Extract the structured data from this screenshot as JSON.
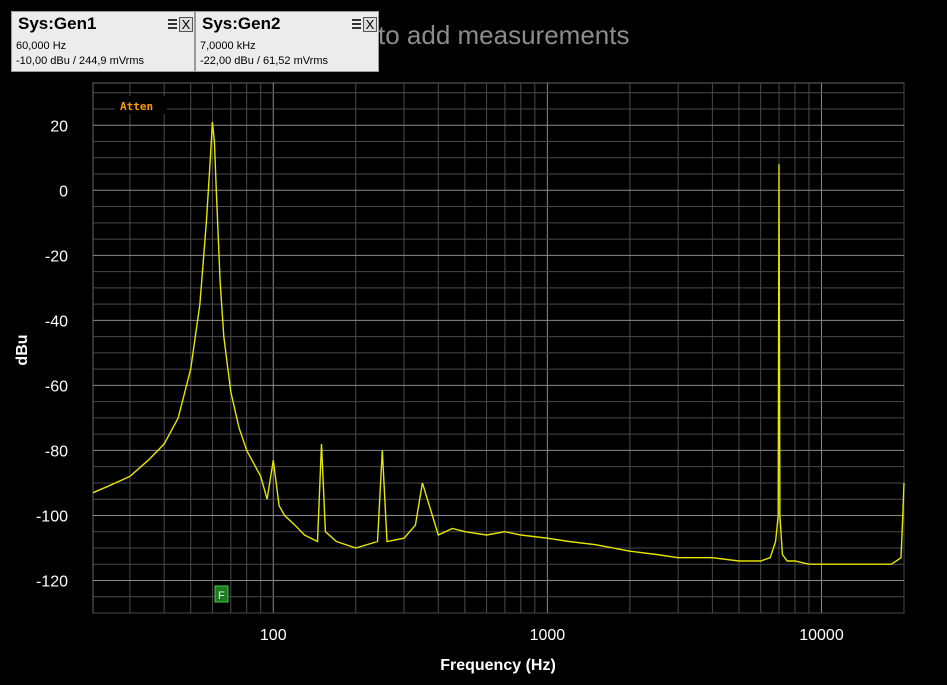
{
  "hint": "to add measurements",
  "panels": [
    {
      "title": "Sys:Gen1",
      "close": "X",
      "line1": "60,000 Hz",
      "line2": "-10,00 dBu  / 244,9 mVrms"
    },
    {
      "title": "Sys:Gen2",
      "close": "X",
      "line1": "7,0000 kHz",
      "line2": "-22,00 dBu  / 61,52 mVrms"
    }
  ],
  "chart_data": {
    "type": "line",
    "xlabel": "Frequency (Hz)",
    "ylabel": "dBu",
    "xscale": "log",
    "xlim": [
      22,
      20000
    ],
    "ylim": [
      -130,
      33
    ],
    "grid": true,
    "x_ticks": [
      "100",
      "1000",
      "10000"
    ],
    "y_ticks": [
      "20",
      "0",
      "-20",
      "-40",
      "-60",
      "-80",
      "-100",
      "-120"
    ],
    "legend_label": "Atten",
    "marker_label": "F",
    "series": [
      {
        "color": "#e6e600",
        "x": [
          22,
          25,
          30,
          35,
          40,
          45,
          50,
          54,
          57,
          59,
          60,
          61,
          62,
          64,
          66,
          70,
          75,
          80,
          90,
          95,
          100,
          105,
          110,
          120,
          130,
          145,
          150,
          155,
          170,
          200,
          240,
          250,
          260,
          300,
          330,
          350,
          400,
          450,
          500,
          600,
          700,
          800,
          1000,
          1200,
          1500,
          2000,
          2500,
          3000,
          4000,
          5000,
          6000,
          6500,
          6800,
          6950,
          7000,
          7050,
          7200,
          7500,
          8000,
          9000,
          10000,
          12000,
          15000,
          18000,
          19500,
          19800,
          20000
        ],
        "y": [
          -93,
          -91,
          -88,
          -83,
          -78,
          -70,
          -55,
          -35,
          -10,
          10,
          21,
          15,
          0,
          -28,
          -45,
          -62,
          -73,
          -80,
          -88,
          -95,
          -83,
          -97,
          -100,
          -103,
          -106,
          -108,
          -78,
          -105,
          -108,
          -110,
          -108,
          -80,
          -108,
          -107,
          -103,
          -90,
          -106,
          -104,
          -105,
          -106,
          -105,
          -106,
          -107,
          -108,
          -109,
          -111,
          -112,
          -113,
          -113,
          -114,
          -114,
          -113,
          -108,
          -100,
          8,
          -100,
          -112,
          -114,
          -114,
          -115,
          -115,
          -115,
          -115,
          -115,
          -113,
          -100,
          -90
        ]
      }
    ]
  }
}
